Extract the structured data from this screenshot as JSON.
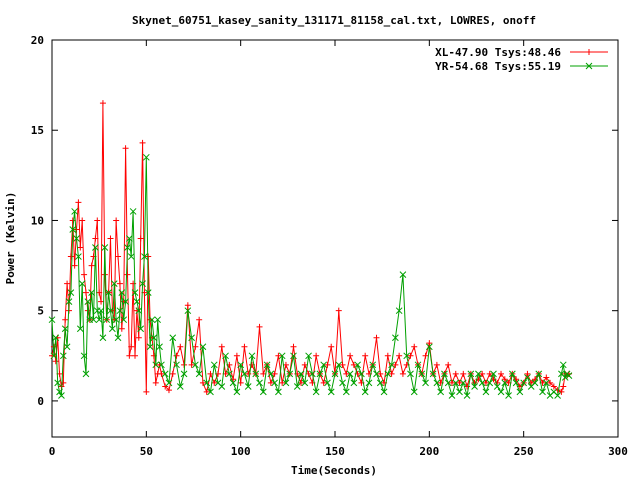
{
  "chart_data": {
    "type": "line",
    "title": "Skynet_60751_kasey_sanity_131171_81158_cal.txt, LOWRES, onoff",
    "xlabel": "Time(Seconds)",
    "ylabel": "Power (Kelvin)",
    "xlim": [
      0,
      300
    ],
    "ylim": [
      -2,
      20
    ],
    "xticks": [
      0,
      50,
      100,
      150,
      200,
      250,
      300
    ],
    "yticks": [
      0,
      5,
      10,
      15,
      20
    ],
    "grid": false,
    "legend_position": "top-right",
    "series": [
      {
        "name": "XL-47.90 Tsys:48.46",
        "color": "#ff0000",
        "marker": "plus",
        "x": [
          0,
          1,
          2,
          3,
          4,
          5,
          6,
          7,
          8,
          9,
          10,
          11,
          12,
          13,
          14,
          15,
          16,
          17,
          18,
          19,
          20,
          21,
          22,
          23,
          24,
          25,
          26,
          27,
          28,
          29,
          30,
          31,
          32,
          33,
          34,
          35,
          36,
          37,
          38,
          39,
          40,
          41,
          42,
          43,
          44,
          45,
          46,
          47,
          48,
          49,
          50,
          51,
          52,
          53,
          54,
          55,
          56,
          57,
          58,
          60,
          62,
          64,
          66,
          68,
          70,
          72,
          74,
          76,
          78,
          80,
          82,
          84,
          86,
          88,
          90,
          92,
          94,
          96,
          98,
          100,
          102,
          104,
          106,
          108,
          110,
          112,
          114,
          116,
          118,
          120,
          122,
          124,
          126,
          128,
          130,
          132,
          134,
          136,
          138,
          140,
          142,
          144,
          146,
          148,
          150,
          152,
          154,
          156,
          158,
          160,
          162,
          164,
          166,
          168,
          170,
          172,
          174,
          176,
          178,
          180,
          182,
          184,
          186,
          188,
          190,
          192,
          194,
          196,
          198,
          200,
          202,
          204,
          206,
          208,
          210,
          212,
          214,
          216,
          218,
          220,
          222,
          224,
          226,
          228,
          230,
          232,
          234,
          236,
          238,
          240,
          242,
          244,
          246,
          248,
          250,
          252,
          254,
          256,
          258,
          260,
          262,
          264,
          266,
          268,
          270,
          271,
          272,
          273,
          274
        ],
        "y": [
          2.5,
          3.0,
          2.2,
          3.5,
          1.5,
          0.8,
          1.0,
          4.5,
          6.5,
          5.0,
          8.0,
          10.0,
          7.5,
          9.5,
          11.0,
          8.5,
          10.0,
          7.0,
          6.0,
          5.0,
          4.5,
          7.5,
          8.0,
          9.0,
          10.0,
          6.0,
          5.5,
          16.5,
          7.0,
          4.5,
          6.0,
          9.0,
          5.0,
          4.5,
          10.0,
          8.0,
          6.5,
          4.0,
          5.5,
          14.0,
          7.0,
          2.5,
          3.0,
          6.5,
          2.5,
          5.0,
          3.5,
          9.0,
          14.3,
          6.0,
          0.5,
          8.0,
          4.5,
          3.5,
          2.5,
          1.0,
          1.5,
          2.0,
          1.5,
          0.8,
          0.6,
          1.5,
          2.5,
          3.0,
          2.0,
          5.3,
          2.0,
          3.0,
          4.5,
          1.0,
          0.5,
          1.5,
          1.0,
          1.5,
          3.0,
          1.5,
          2.0,
          1.2,
          2.5,
          1.0,
          3.0,
          1.5,
          2.0,
          1.5,
          4.1,
          1.5,
          2.0,
          1.0,
          1.5,
          2.5,
          1.0,
          2.0,
          1.5,
          3.0,
          1.5,
          1.0,
          2.0,
          1.5,
          1.0,
          2.5,
          1.5,
          1.0,
          2.0,
          3.0,
          1.5,
          5.0,
          2.0,
          1.5,
          2.5,
          2.0,
          1.5,
          1.0,
          2.5,
          1.5,
          2.0,
          3.5,
          1.5,
          1.0,
          2.5,
          1.5,
          2.0,
          2.5,
          1.5,
          2.0,
          2.5,
          3.0,
          2.0,
          1.5,
          2.5,
          3.2,
          1.5,
          2.0,
          1.0,
          1.5,
          2.0,
          1.0,
          1.5,
          1.0,
          1.5,
          0.8,
          1.5,
          1.0,
          1.2,
          1.5,
          1.0,
          1.5,
          1.2,
          1.0,
          1.5,
          1.2,
          1.0,
          1.5,
          1.2,
          0.8,
          1.0,
          1.5,
          1.0,
          1.2,
          1.5,
          1.0,
          1.3,
          1.0,
          0.8,
          0.6,
          0.5,
          0.8,
          1.5,
          1.4,
          1.5
        ]
      },
      {
        "name": "YR-54.68 Tsys:55.19",
        "color": "#00a000",
        "marker": "x",
        "x": [
          0,
          1,
          2,
          3,
          4,
          5,
          6,
          7,
          8,
          9,
          10,
          11,
          12,
          13,
          14,
          15,
          16,
          17,
          18,
          19,
          20,
          21,
          22,
          23,
          24,
          25,
          26,
          27,
          28,
          29,
          30,
          31,
          32,
          33,
          34,
          35,
          36,
          37,
          38,
          39,
          40,
          41,
          42,
          43,
          44,
          45,
          46,
          47,
          48,
          49,
          50,
          51,
          52,
          53,
          54,
          55,
          56,
          57,
          58,
          60,
          62,
          64,
          66,
          68,
          70,
          72,
          74,
          76,
          78,
          80,
          82,
          84,
          86,
          88,
          90,
          92,
          94,
          96,
          98,
          100,
          102,
          104,
          106,
          108,
          110,
          112,
          114,
          116,
          118,
          120,
          122,
          124,
          126,
          128,
          130,
          132,
          134,
          136,
          138,
          140,
          142,
          144,
          146,
          148,
          150,
          152,
          154,
          156,
          158,
          160,
          162,
          164,
          166,
          168,
          170,
          172,
          174,
          176,
          178,
          180,
          182,
          184,
          186,
          188,
          190,
          192,
          194,
          196,
          198,
          200,
          202,
          204,
          206,
          208,
          210,
          212,
          214,
          216,
          218,
          220,
          222,
          224,
          226,
          228,
          230,
          232,
          234,
          236,
          238,
          240,
          242,
          244,
          246,
          248,
          250,
          252,
          254,
          256,
          258,
          260,
          262,
          264,
          266,
          268,
          270,
          271,
          272,
          273,
          274
        ],
        "y": [
          4.5,
          2.5,
          3.5,
          1.0,
          0.5,
          0.3,
          2.5,
          4.0,
          3.0,
          5.5,
          6.0,
          9.5,
          10.5,
          9.0,
          8.0,
          4.0,
          6.5,
          2.5,
          1.5,
          5.5,
          4.5,
          6.0,
          4.5,
          8.5,
          5.0,
          4.5,
          5.0,
          3.5,
          8.5,
          4.5,
          6.0,
          5.0,
          4.0,
          6.5,
          4.5,
          3.5,
          5.0,
          6.0,
          4.5,
          5.5,
          8.5,
          9.0,
          8.0,
          10.5,
          6.0,
          5.5,
          5.0,
          4.0,
          6.5,
          8.0,
          13.5,
          6.0,
          3.0,
          4.5,
          3.5,
          2.0,
          4.5,
          3.0,
          2.0,
          1.5,
          1.0,
          3.5,
          2.0,
          0.8,
          1.5,
          5.0,
          3.5,
          2.0,
          1.5,
          3.0,
          1.0,
          0.5,
          2.0,
          1.0,
          0.8,
          2.5,
          1.5,
          1.0,
          0.5,
          2.0,
          1.5,
          0.8,
          2.5,
          1.5,
          1.0,
          0.5,
          2.0,
          1.5,
          1.0,
          0.5,
          2.5,
          1.0,
          1.5,
          2.5,
          0.8,
          1.5,
          1.0,
          2.5,
          1.5,
          0.5,
          1.5,
          2.0,
          1.0,
          0.5,
          1.5,
          2.0,
          1.0,
          0.5,
          1.5,
          1.0,
          2.0,
          1.5,
          0.5,
          1.0,
          2.0,
          1.5,
          1.0,
          0.5,
          1.5,
          2.0,
          3.5,
          5.0,
          7.0,
          2.5,
          1.5,
          0.5,
          2.0,
          1.5,
          1.0,
          3.0,
          1.5,
          1.0,
          0.5,
          1.5,
          1.0,
          0.3,
          1.0,
          0.5,
          1.0,
          0.3,
          1.5,
          0.8,
          1.5,
          1.0,
          0.5,
          1.0,
          1.5,
          0.8,
          0.5,
          1.0,
          0.3,
          1.5,
          1.0,
          0.5,
          1.0,
          1.3,
          0.8,
          1.0,
          1.5,
          0.5,
          1.0,
          0.3,
          0.5,
          0.3,
          1.5,
          2.0,
          1.3,
          1.5,
          1.4
        ]
      }
    ]
  }
}
